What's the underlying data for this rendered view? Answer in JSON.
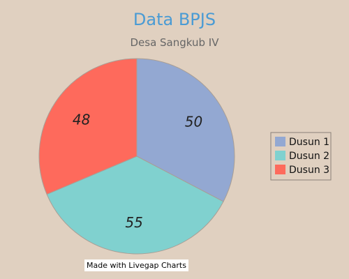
{
  "chart_data": {
    "type": "pie",
    "title": "Data BPJS",
    "subtitle": "Desa Sangkub IV",
    "categories": [
      "Dusun 1",
      "Dusun 2",
      "Dusun 3"
    ],
    "values": [
      50,
      55,
      48
    ],
    "colors": [
      "#93a8d2",
      "#80d1cf",
      "#fe6a5c"
    ],
    "legend_position": "right"
  },
  "colors": {
    "background": "#e0d0c0",
    "title": "#4a9bd4",
    "subtitle": "#666666",
    "slice_stroke": "#a89e95",
    "label_text": "#222222",
    "legend_border": "#8a8078",
    "legend_text": "#111111"
  },
  "credit": "Made with Livegap Charts"
}
